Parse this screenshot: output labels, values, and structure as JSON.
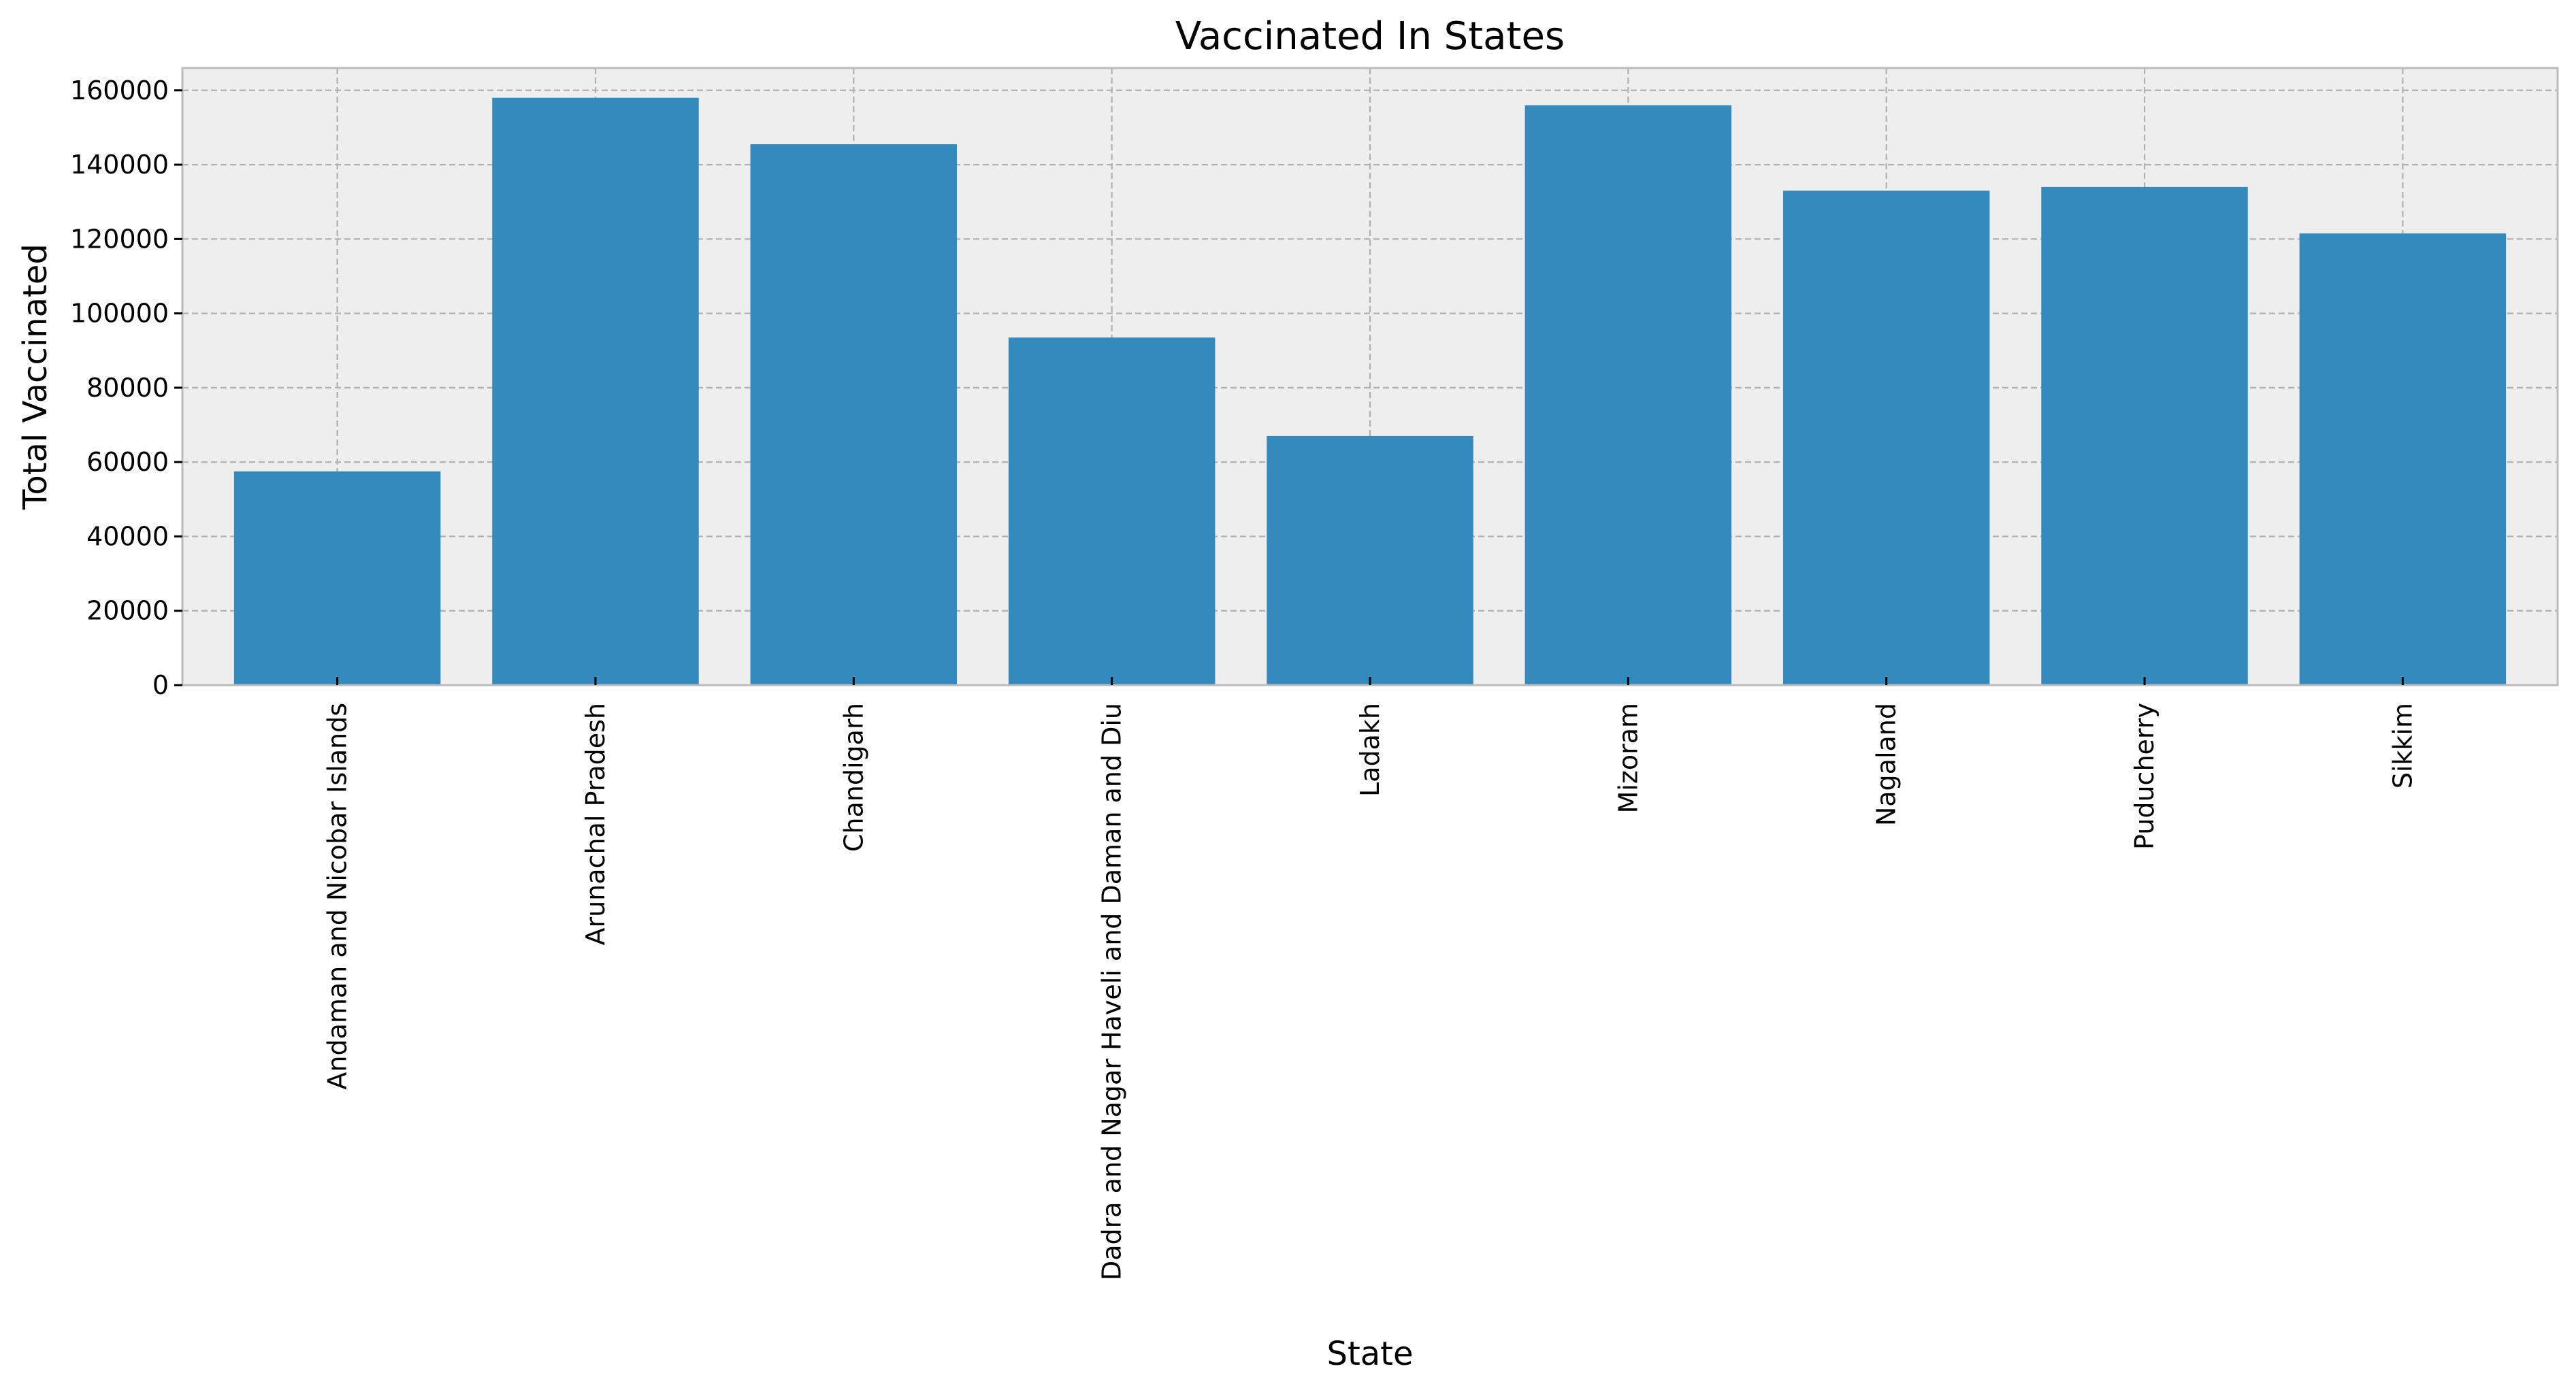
{
  "chart_data": {
    "type": "bar",
    "title": "Vaccinated In States",
    "xlabel": "State",
    "ylabel": "Total Vaccinated",
    "categories": [
      "Andaman and Nicobar Islands",
      "Arunachal Pradesh",
      "Chandigarh",
      "Dadra and Nagar Haveli and Daman and Diu",
      "Ladakh",
      "Mizoram",
      "Nagaland",
      "Puducherry",
      "Sikkim"
    ],
    "values": [
      57500,
      158000,
      145500,
      93500,
      67000,
      156000,
      133000,
      134000,
      121500
    ],
    "ylim": [
      0,
      166000
    ],
    "yticks": [
      0,
      20000,
      40000,
      60000,
      80000,
      100000,
      120000,
      140000,
      160000
    ],
    "ytick_labels": [
      "0",
      "20000",
      "40000",
      "60000",
      "80000",
      "100000",
      "120000",
      "140000",
      "160000"
    ],
    "grid": true,
    "colors": {
      "bar": "#348abd",
      "plot_background": "#eeeeee",
      "grid": "#b0b0b0"
    }
  }
}
